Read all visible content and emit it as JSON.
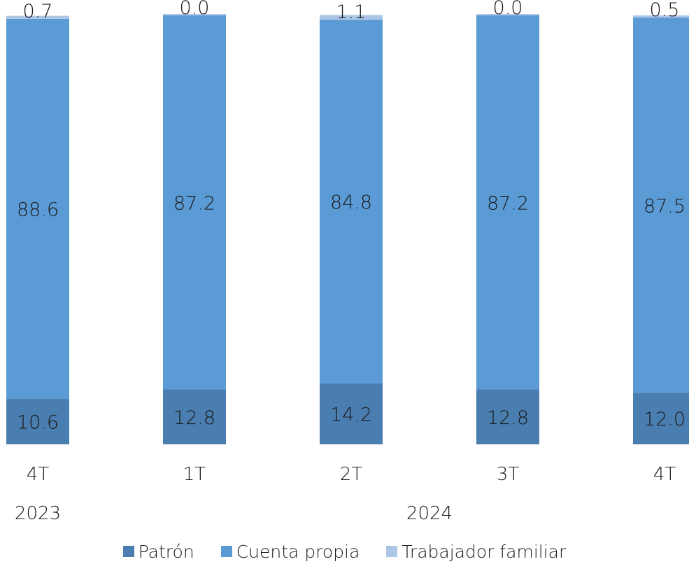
{
  "chart_data": {
    "type": "bar",
    "stacked": true,
    "categories": [
      "4T",
      "1T",
      "2T",
      "3T",
      "4T"
    ],
    "years": [
      {
        "label": "2023",
        "start": 0,
        "end": 0
      },
      {
        "label": "2024",
        "start": 1,
        "end": 4
      }
    ],
    "series": [
      {
        "name": "Patrón",
        "color": "#4a7eb0",
        "values": [
          10.6,
          12.8,
          14.2,
          12.8,
          12.0
        ]
      },
      {
        "name": "Cuenta propia",
        "color": "#5b9bd5",
        "values": [
          88.6,
          87.2,
          84.8,
          87.2,
          87.5
        ]
      },
      {
        "name": "Trabajador familiar",
        "color": "#aec6e6",
        "values": [
          0.7,
          0.0,
          1.1,
          0.0,
          0.5
        ]
      }
    ],
    "ylim": [
      0,
      100
    ],
    "grid": false,
    "legend_position": "bottom"
  }
}
